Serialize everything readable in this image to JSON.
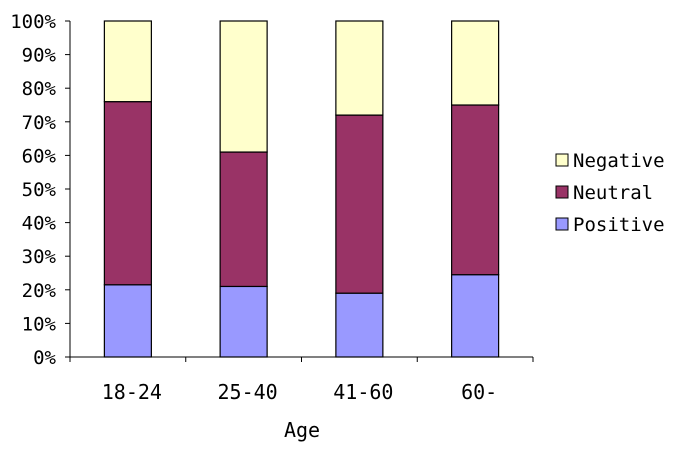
{
  "chart_data": {
    "type": "bar",
    "stacked": true,
    "percent_stacked": true,
    "title": "",
    "xlabel": "Age",
    "ylabel": "",
    "ylim": [
      0,
      100
    ],
    "yticks": [
      "0%",
      "10%",
      "20%",
      "30%",
      "40%",
      "50%",
      "60%",
      "70%",
      "80%",
      "90%",
      "100%"
    ],
    "categories": [
      "18-24",
      "25-40",
      "41-60",
      "60-"
    ],
    "series": [
      {
        "name": "Positive",
        "values": [
          21.5,
          21,
          19,
          24.5
        ],
        "color": "#9999ff"
      },
      {
        "name": "Neutral",
        "values": [
          54.5,
          40,
          53,
          50.5
        ],
        "color": "#993366"
      },
      {
        "name": "Negative",
        "values": [
          24,
          39,
          28,
          25
        ],
        "color": "#ffffcc"
      }
    ],
    "legend": {
      "position": "right",
      "order": [
        "Negative",
        "Neutral",
        "Positive"
      ]
    },
    "grid": false
  }
}
